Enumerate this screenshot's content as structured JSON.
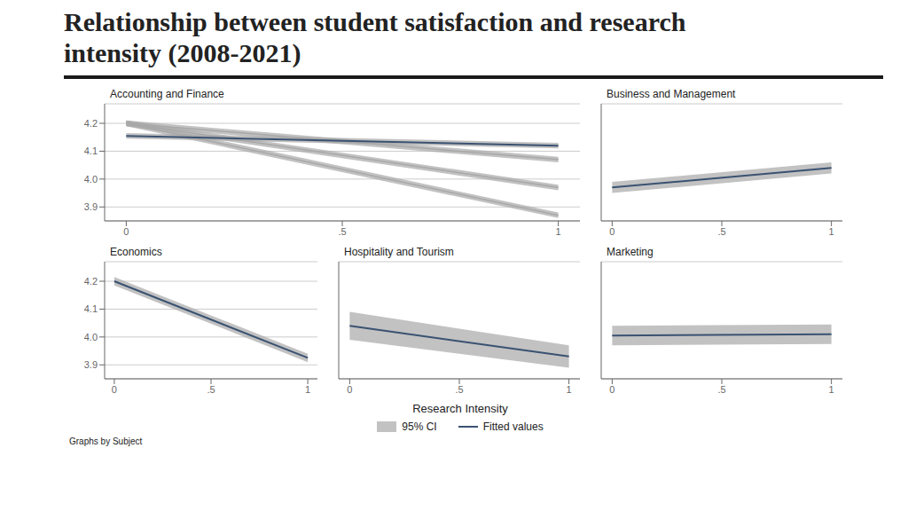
{
  "chart_data": {
    "type": "line",
    "title": "Relationship between student satisfaction and research\nintensity (2008-2021)",
    "x_label": "Research Intensity",
    "xlim": [
      -0.05,
      1.05
    ],
    "xticks": [
      0,
      {
        "value": 0.5,
        "label": ".5"
      },
      1
    ],
    "ylim": [
      3.85,
      4.27
    ],
    "yticks": [
      3.9,
      {
        "value": 4.0,
        "label": "4.0"
      },
      4.1,
      4.2
    ],
    "grid": true,
    "legend": "bottom",
    "annotations": [
      "Graphs by Subject"
    ],
    "panels": [
      {
        "title": "Accounting and Finance",
        "x": [
          0,
          1
        ],
        "series": [
          {
            "type": "band",
            "color": "#a8a8a8",
            "lower": [
              4.19,
              3.86
            ],
            "upper": [
              4.21,
              3.88
            ]
          },
          {
            "type": "line",
            "color": "#a8a8a8",
            "values": [
              4.2,
              3.87
            ]
          },
          {
            "type": "band",
            "color": "#a8a8a8",
            "lower": [
              4.19,
              3.96
            ],
            "upper": [
              4.21,
              3.98
            ]
          },
          {
            "type": "line",
            "color": "#a8a8a8",
            "values": [
              4.2,
              3.97
            ]
          },
          {
            "type": "band",
            "color": "#a8a8a8",
            "lower": [
              4.19,
              4.06
            ],
            "upper": [
              4.21,
              4.08
            ]
          },
          {
            "type": "line",
            "color": "#a8a8a8",
            "values": [
              4.2,
              4.07
            ]
          },
          {
            "name": "95% CI",
            "type": "band",
            "color": "#a8a8a8",
            "lower": [
              4.145,
              4.11
            ],
            "upper": [
              4.165,
              4.13
            ]
          },
          {
            "name": "Fitted values",
            "type": "line",
            "color": "#3a5272",
            "values": [
              4.155,
              4.12
            ]
          }
        ]
      },
      {
        "title": "Business and Management",
        "x": [
          0,
          1
        ],
        "series": [
          {
            "name": "95% CI",
            "type": "band",
            "color": "#a8a8a8",
            "lower": [
              3.95,
              4.02
            ],
            "upper": [
              3.99,
              4.06
            ]
          },
          {
            "name": "Fitted values",
            "type": "line",
            "color": "#3a5272",
            "values": [
              3.97,
              4.04
            ]
          }
        ]
      },
      {
        "title": "Economics",
        "x": [
          0,
          1
        ],
        "series": [
          {
            "name": "95% CI",
            "type": "band",
            "color": "#a8a8a8",
            "lower": [
              4.185,
              3.91
            ],
            "upper": [
              4.215,
              3.94
            ]
          },
          {
            "name": "Fitted values",
            "type": "line",
            "color": "#3a5272",
            "values": [
              4.2,
              3.925
            ]
          }
        ]
      },
      {
        "title": "Hospitality and Tourism",
        "x": [
          0,
          1
        ],
        "series": [
          {
            "name": "95% CI",
            "type": "band",
            "color": "#a8a8a8",
            "lower": [
              3.99,
              3.89
            ],
            "upper": [
              4.09,
              3.97
            ]
          },
          {
            "name": "Fitted values",
            "type": "line",
            "color": "#3a5272",
            "values": [
              4.04,
              3.93
            ]
          }
        ]
      },
      {
        "title": "Marketing",
        "x": [
          0,
          1
        ],
        "series": [
          {
            "name": "95% CI",
            "type": "band",
            "color": "#a8a8a8",
            "lower": [
              3.97,
              3.975
            ],
            "upper": [
              4.04,
              4.045
            ]
          },
          {
            "name": "Fitted values",
            "type": "line",
            "color": "#3a5272",
            "values": [
              4.005,
              4.01
            ]
          }
        ]
      }
    ]
  }
}
